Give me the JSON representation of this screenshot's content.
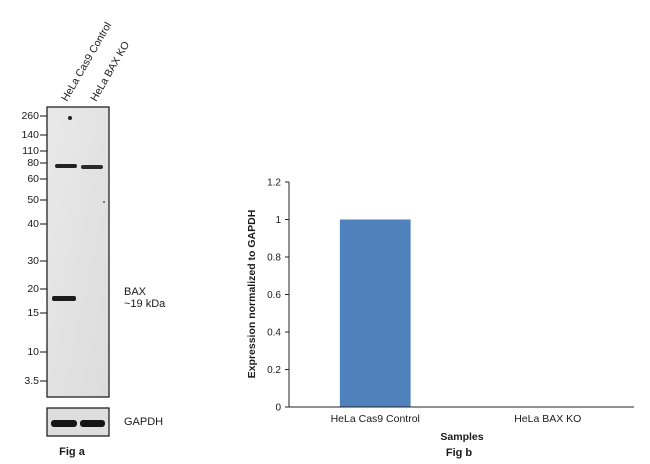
{
  "blot": {
    "lanes": [
      "HeLa Cas9 Control",
      "HeLa BAX KO"
    ],
    "mw_markers": [
      "260",
      "140",
      "110",
      "80",
      "60",
      "50",
      "40",
      "30",
      "20",
      "15",
      "10",
      "3.5"
    ],
    "band_label_name": "BAX",
    "band_label_size": "~19 kDa",
    "loading_label": "GAPDH",
    "caption": "Fig a"
  },
  "chart_data": {
    "type": "bar",
    "categories": [
      "HeLa Cas9 Control",
      "HeLa BAX KO"
    ],
    "values": [
      1,
      0
    ],
    "xlabel": "Samples",
    "ylabel": "Expression normalized to GAPDH",
    "ylim": [
      0,
      1.2
    ],
    "yticks": [
      "0",
      "0.2",
      "0.4",
      "0.6",
      "0.8",
      "1",
      "1.2"
    ],
    "caption": "Fig b",
    "bar_color": "#4f81bd",
    "grid": false,
    "legend": "none"
  }
}
